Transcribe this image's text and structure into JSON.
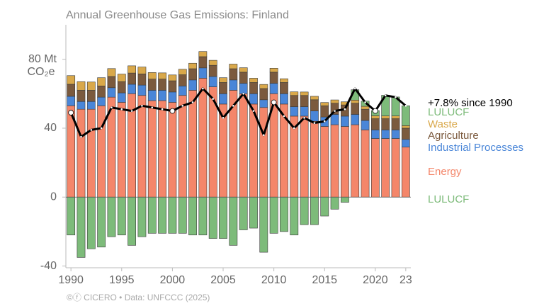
{
  "chart_data": {
    "type": "bar",
    "title": "Annual Greenhouse Gas Emissions: Finland",
    "unit": "CO₂e",
    "footer": "©ⓕ CICERO  •  Data: UNFCCC (2025)",
    "categories": [
      1990,
      1991,
      1992,
      1993,
      1994,
      1995,
      1996,
      1997,
      1998,
      1999,
      2000,
      2001,
      2002,
      2003,
      2004,
      2005,
      2006,
      2007,
      2008,
      2009,
      2010,
      2011,
      2012,
      2013,
      2014,
      2015,
      2016,
      2017,
      2018,
      2019,
      2020,
      2021,
      2022,
      2023
    ],
    "xlim": [
      1989.5,
      2023.5
    ],
    "xticks": [
      1990,
      1995,
      2000,
      2005,
      2010,
      2015,
      2020,
      {
        "value": 2023,
        "label": "23"
      }
    ],
    "ylim": [
      -41,
      100
    ],
    "yticks": [
      -40,
      0,
      40,
      {
        "value": 80,
        "label": "80 Mt"
      }
    ],
    "series": [
      {
        "name": "Energy",
        "color": "#f4866a",
        "values": [
          53,
          51,
          51,
          53,
          58,
          55,
          60,
          59,
          56,
          56,
          55,
          59,
          62,
          69,
          64,
          54,
          62,
          60,
          54,
          52,
          60,
          54,
          47,
          47,
          44,
          41,
          42,
          41,
          42,
          39,
          34,
          34,
          34,
          29
        ]
      },
      {
        "name": "Industrial Processes",
        "color": "#4a86d8",
        "values": [
          5.5,
          4.5,
          4.5,
          5,
          5.5,
          5.5,
          5.5,
          6,
          6,
          6,
          6,
          5.5,
          6,
          6,
          6,
          6,
          6,
          6,
          6,
          4.5,
          6,
          6,
          5.5,
          5.5,
          6,
          5.5,
          6,
          6,
          6,
          5.5,
          5,
          5,
          5,
          4.5
        ]
      },
      {
        "name": "Agriculture",
        "color": "#7b5a3e",
        "values": [
          7,
          6.5,
          6.5,
          6.5,
          6.5,
          6.5,
          6.5,
          6.5,
          6.5,
          6.5,
          6.5,
          6.5,
          6.5,
          6.5,
          6.5,
          6.5,
          6.5,
          6.5,
          6.5,
          6.5,
          6.5,
          6.5,
          6.5,
          6.5,
          6.5,
          6.5,
          6.5,
          6.5,
          6.5,
          6.5,
          6.5,
          6.5,
          6.5,
          6.5
        ]
      },
      {
        "name": "Waste",
        "color": "#d9a84a",
        "values": [
          5,
          5,
          4.8,
          4.8,
          4.6,
          4.4,
          4.2,
          4,
          3.8,
          3.6,
          3.4,
          3.2,
          3.2,
          3,
          2.9,
          2.8,
          2.7,
          2.6,
          2.5,
          2.4,
          2.3,
          2.2,
          2.1,
          2,
          2,
          1.9,
          1.9,
          1.8,
          1.8,
          1.7,
          1.7,
          1.6,
          1.6,
          1.5
        ]
      },
      {
        "name": "LULUCF",
        "color": "#7dbb7a",
        "values": [
          -22,
          -35,
          -30,
          -29,
          -23,
          -22,
          -28,
          -23,
          -21,
          -21,
          -21,
          -21,
          -22,
          -22,
          -24,
          -24,
          -28,
          -19,
          -18,
          -32,
          -21,
          -20,
          -22,
          -16,
          -16,
          -11,
          -7,
          -3,
          6,
          3,
          3,
          12,
          11,
          11.5
        ]
      }
    ],
    "net": {
      "label": "+7.8% since 1990",
      "color": "#000000",
      "values": [
        49,
        35,
        39,
        40,
        52,
        51,
        50,
        53,
        52,
        51,
        50,
        53,
        55,
        63,
        57,
        46,
        53,
        60,
        50,
        36,
        55,
        47,
        40,
        46,
        43,
        44,
        50,
        51,
        63,
        55,
        50,
        59,
        58,
        53
      ]
    }
  }
}
